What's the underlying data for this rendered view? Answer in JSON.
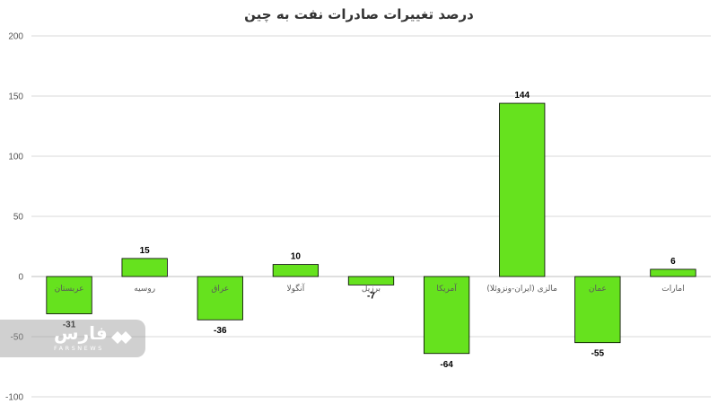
{
  "chart_data": {
    "type": "bar",
    "title": "درصد تغییرات صادرات نفت به چین",
    "categories": [
      "عربستان",
      "روسیه",
      "عراق",
      "آنگولا",
      "برزیل",
      "آمریکا",
      "مالزی (ایران-ونزوئلا)",
      "عمان",
      "امارات"
    ],
    "values": [
      -31,
      15,
      -36,
      10,
      -7,
      -64,
      144,
      -55,
      6
    ],
    "ylim": [
      -100,
      200
    ],
    "yticks": [
      -100,
      -50,
      0,
      50,
      100,
      150,
      200
    ],
    "grid": true,
    "bar_color": "#66e21e",
    "bar_stroke": "#000000"
  },
  "watermark": {
    "logo_text": "فارس",
    "sub_text": "FARSNEWS"
  }
}
